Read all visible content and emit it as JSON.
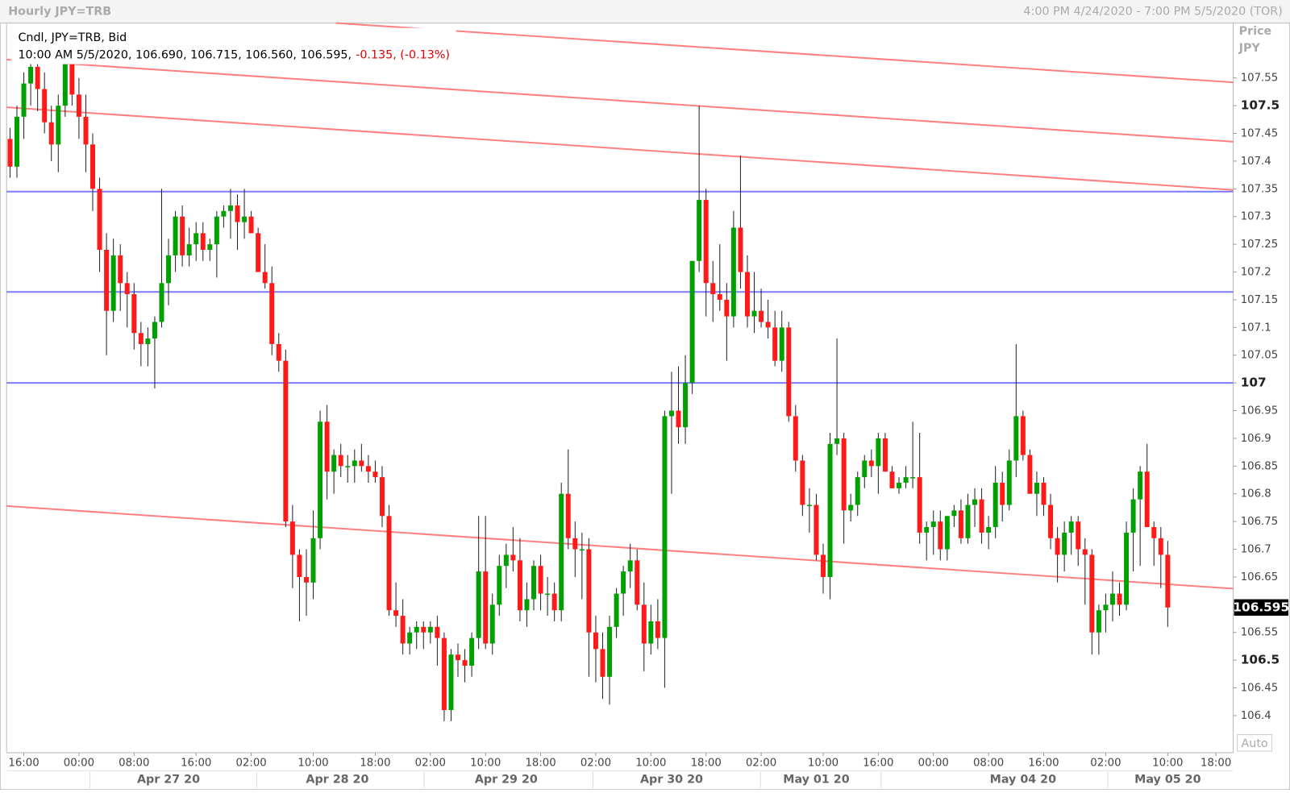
{
  "chart_data": {
    "type": "candlestick",
    "title": "Hourly JPY=TRB",
    "range_label": "4:00 PM 4/24/2020 - 7:00 PM 5/5/2020 (TOR)",
    "legend": {
      "line1": "Cndl, JPY=TRB, Bid",
      "line2": "10:00 AM 5/5/2020, 106.690, 106.715, 106.560, 106.595,",
      "change": "-0.135, (-0.13%)"
    },
    "axis_title": [
      "Price",
      "JPY"
    ],
    "auto_label": "Auto",
    "up_color": "#00a000",
    "down_color": "#ff1a1a",
    "hline_color": "#7b7bff",
    "trend_color": "#ff8080",
    "xlim": [
      -0.5,
      177.5
    ],
    "ylim": [
      106.333,
      107.649
    ],
    "yticks": [
      106.4,
      106.45,
      106.5,
      106.55,
      106.6,
      106.65,
      106.7,
      106.75,
      106.8,
      106.85,
      106.9,
      106.95,
      107,
      107.05,
      107.1,
      107.15,
      107.2,
      107.25,
      107.3,
      107.35,
      107.4,
      107.45,
      107.5,
      107.55
    ],
    "xticks": [
      {
        "value": 2,
        "label": "16:00"
      },
      {
        "value": 10,
        "label": "00:00"
      },
      {
        "value": 18,
        "label": "08:00"
      },
      {
        "value": 27,
        "label": "16:00"
      },
      {
        "value": 35,
        "label": "02:00"
      },
      {
        "value": 44,
        "label": "10:00"
      },
      {
        "value": 53,
        "label": "18:00"
      },
      {
        "value": 61,
        "label": "02:00"
      },
      {
        "value": 69,
        "label": "10:00"
      },
      {
        "value": 77,
        "label": "18:00"
      },
      {
        "value": 85,
        "label": "02:00"
      },
      {
        "value": 93,
        "label": "10:00"
      },
      {
        "value": 101,
        "label": "18:00"
      },
      {
        "value": 109,
        "label": "02:00"
      },
      {
        "value": 118,
        "label": "10:00"
      },
      {
        "value": 126,
        "label": "16:00"
      },
      {
        "value": 134,
        "label": "00:00"
      },
      {
        "value": 142,
        "label": "08:00"
      },
      {
        "value": 150,
        "label": "16:00"
      },
      {
        "value": 159,
        "label": "02:00"
      },
      {
        "value": 168,
        "label": "10:00"
      },
      {
        "value": 175,
        "label": "18:00"
      }
    ],
    "date_ticks": [
      {
        "value": 23,
        "label": "Apr 27 20"
      },
      {
        "value": 47.5,
        "label": "Apr 28 20"
      },
      {
        "value": 72,
        "label": "Apr 29 20"
      },
      {
        "value": 96,
        "label": "Apr 30 20"
      },
      {
        "value": 117,
        "label": "May 01 20"
      },
      {
        "value": 147,
        "label": "May 04 20"
      },
      {
        "value": 168,
        "label": "May 05 20"
      }
    ],
    "date_separators": [
      11.6,
      35.8,
      60.1,
      84.6,
      108.9,
      126.4,
      159.3
    ],
    "hlines": [
      107.345,
      107.164,
      107.0
    ],
    "trendlines": [
      {
        "x": [
          47.3,
          177.5
        ],
        "y": [
          107.649,
          107.542
        ]
      },
      {
        "x": [
          -0.5,
          177.5
        ],
        "y": [
          107.583,
          107.435
        ]
      },
      {
        "x": [
          -0.5,
          177.5
        ],
        "y": [
          107.497,
          107.348
        ]
      },
      {
        "x": [
          -0.5,
          177.5
        ],
        "y": [
          106.778,
          106.629
        ]
      }
    ],
    "last_price": {
      "value": 106.595,
      "label": "106.595"
    },
    "ohlc": [
      [
        107.44,
        107.46,
        107.37,
        107.39
      ],
      [
        107.39,
        107.5,
        107.37,
        107.48
      ],
      [
        107.48,
        107.56,
        107.44,
        107.54
      ],
      [
        107.54,
        107.6,
        107.5,
        107.57
      ],
      [
        107.57,
        107.59,
        107.49,
        107.53
      ],
      [
        107.53,
        107.56,
        107.45,
        107.47
      ],
      [
        107.47,
        107.5,
        107.4,
        107.43
      ],
      [
        107.43,
        107.52,
        107.38,
        107.5
      ],
      [
        107.5,
        107.6,
        107.48,
        107.58
      ],
      [
        107.58,
        107.6,
        107.5,
        107.52
      ],
      [
        107.52,
        107.55,
        107.44,
        107.48
      ],
      [
        107.48,
        107.52,
        107.38,
        107.43
      ],
      [
        107.43,
        107.45,
        107.31,
        107.35
      ],
      [
        107.35,
        107.37,
        107.2,
        107.24
      ],
      [
        107.24,
        107.27,
        107.05,
        107.13
      ],
      [
        107.13,
        107.26,
        107.11,
        107.23
      ],
      [
        107.23,
        107.25,
        107.13,
        107.18
      ],
      [
        107.18,
        107.2,
        107.1,
        107.16
      ],
      [
        107.16,
        107.18,
        107.06,
        107.09
      ],
      [
        107.09,
        107.11,
        107.03,
        107.07
      ],
      [
        107.07,
        107.1,
        107.03,
        107.08
      ],
      [
        107.08,
        107.12,
        106.99,
        107.11
      ],
      [
        107.11,
        107.35,
        107.1,
        107.18
      ],
      [
        107.18,
        107.26,
        107.14,
        107.23
      ],
      [
        107.23,
        107.31,
        107.2,
        107.3
      ],
      [
        107.3,
        107.32,
        107.21,
        107.23
      ],
      [
        107.23,
        107.28,
        107.21,
        107.25
      ],
      [
        107.25,
        107.29,
        107.22,
        107.27
      ],
      [
        107.27,
        107.29,
        107.22,
        107.24
      ],
      [
        107.24,
        107.26,
        107.22,
        107.25
      ],
      [
        107.25,
        107.31,
        107.19,
        107.3
      ],
      [
        107.3,
        107.32,
        107.28,
        107.31
      ],
      [
        107.31,
        107.35,
        107.26,
        107.32
      ],
      [
        107.32,
        107.34,
        107.24,
        107.29
      ],
      [
        107.29,
        107.35,
        107.26,
        107.3
      ],
      [
        107.3,
        107.31,
        107.27,
        107.27
      ],
      [
        107.27,
        107.28,
        107.2,
        107.2
      ],
      [
        107.2,
        107.25,
        107.17,
        107.18
      ],
      [
        107.18,
        107.21,
        107.05,
        107.07
      ],
      [
        107.07,
        107.09,
        107.02,
        107.04
      ],
      [
        107.04,
        107.06,
        106.74,
        106.75
      ],
      [
        106.75,
        106.78,
        106.63,
        106.69
      ],
      [
        106.69,
        106.7,
        106.57,
        106.65
      ],
      [
        106.65,
        106.7,
        106.58,
        106.64
      ],
      [
        106.64,
        106.77,
        106.61,
        106.72
      ],
      [
        106.72,
        106.95,
        106.7,
        106.93
      ],
      [
        106.93,
        106.96,
        106.79,
        106.84
      ],
      [
        106.84,
        106.88,
        106.8,
        106.87
      ],
      [
        106.87,
        106.89,
        106.83,
        106.85
      ],
      [
        106.85,
        106.87,
        106.82,
        106.85
      ],
      [
        106.85,
        106.88,
        106.82,
        106.86
      ],
      [
        106.86,
        106.89,
        106.84,
        106.85
      ],
      [
        106.85,
        106.87,
        106.82,
        106.84
      ],
      [
        106.84,
        106.86,
        106.82,
        106.83
      ],
      [
        106.83,
        106.85,
        106.74,
        106.76
      ],
      [
        106.76,
        106.78,
        106.58,
        106.59
      ],
      [
        106.59,
        106.64,
        106.56,
        106.58
      ],
      [
        106.58,
        106.61,
        106.51,
        106.53
      ],
      [
        106.53,
        106.56,
        106.51,
        106.55
      ],
      [
        106.55,
        106.57,
        106.52,
        106.56
      ],
      [
        106.56,
        106.57,
        106.52,
        106.55
      ],
      [
        106.55,
        106.57,
        106.53,
        106.56
      ],
      [
        106.56,
        106.58,
        106.49,
        106.54
      ],
      [
        106.54,
        106.55,
        106.39,
        106.41
      ],
      [
        106.41,
        106.52,
        106.39,
        106.51
      ],
      [
        106.51,
        106.53,
        106.47,
        106.5
      ],
      [
        106.5,
        106.52,
        106.46,
        106.49
      ],
      [
        106.49,
        106.55,
        106.47,
        106.54
      ],
      [
        106.54,
        106.76,
        106.52,
        106.66
      ],
      [
        106.66,
        106.76,
        106.52,
        106.53
      ],
      [
        106.53,
        106.62,
        106.51,
        106.6
      ],
      [
        106.6,
        106.69,
        106.58,
        106.67
      ],
      [
        106.67,
        106.71,
        106.63,
        106.69
      ],
      [
        106.69,
        106.74,
        106.66,
        106.68
      ],
      [
        106.68,
        106.72,
        106.57,
        106.59
      ],
      [
        106.59,
        106.64,
        106.56,
        106.61
      ],
      [
        106.61,
        106.68,
        106.59,
        106.67
      ],
      [
        106.67,
        106.69,
        106.59,
        106.62
      ],
      [
        106.62,
        106.65,
        106.58,
        106.62
      ],
      [
        106.62,
        106.64,
        106.57,
        106.59
      ],
      [
        106.59,
        106.82,
        106.57,
        106.8
      ],
      [
        106.8,
        106.88,
        106.7,
        106.72
      ],
      [
        106.72,
        106.75,
        106.65,
        106.7
      ],
      [
        106.7,
        106.73,
        106.61,
        106.7
      ],
      [
        106.7,
        106.72,
        106.47,
        106.55
      ],
      [
        106.55,
        106.58,
        106.46,
        106.52
      ],
      [
        106.52,
        106.55,
        106.43,
        106.47
      ],
      [
        106.47,
        106.58,
        106.42,
        106.56
      ],
      [
        106.56,
        106.63,
        106.54,
        106.62
      ],
      [
        106.62,
        106.67,
        106.58,
        106.66
      ],
      [
        106.66,
        106.71,
        106.63,
        106.68
      ],
      [
        106.68,
        106.7,
        106.59,
        106.6
      ],
      [
        106.6,
        106.64,
        106.48,
        106.53
      ],
      [
        106.53,
        106.6,
        106.51,
        106.57
      ],
      [
        106.57,
        106.61,
        106.52,
        106.54
      ],
      [
        106.54,
        106.95,
        106.45,
        106.94
      ],
      [
        106.94,
        107.02,
        106.8,
        106.95
      ],
      [
        106.95,
        107.03,
        106.89,
        106.92
      ],
      [
        106.92,
        107.05,
        106.89,
        107.0
      ],
      [
        107.0,
        107.22,
        106.98,
        107.22
      ],
      [
        107.22,
        107.5,
        107.2,
        107.33
      ],
      [
        107.33,
        107.35,
        107.12,
        107.18
      ],
      [
        107.18,
        107.22,
        107.11,
        107.16
      ],
      [
        107.16,
        107.25,
        107.13,
        107.15
      ],
      [
        107.15,
        107.18,
        107.04,
        107.12
      ],
      [
        107.12,
        107.31,
        107.1,
        107.28
      ],
      [
        107.28,
        107.41,
        107.17,
        107.2
      ],
      [
        107.2,
        107.23,
        107.1,
        107.12
      ],
      [
        107.12,
        107.2,
        107.09,
        107.13
      ],
      [
        107.13,
        107.17,
        107.1,
        107.11
      ],
      [
        107.11,
        107.15,
        107.08,
        107.1
      ],
      [
        107.1,
        107.13,
        107.03,
        107.04
      ],
      [
        107.04,
        107.13,
        107.02,
        107.1
      ],
      [
        107.1,
        107.11,
        106.93,
        106.94
      ],
      [
        106.94,
        106.96,
        106.84,
        106.86
      ],
      [
        106.86,
        106.87,
        106.76,
        106.78
      ],
      [
        106.78,
        106.81,
        106.73,
        106.78
      ],
      [
        106.78,
        106.8,
        106.68,
        106.69
      ],
      [
        106.69,
        106.71,
        106.62,
        106.65
      ],
      [
        106.65,
        106.91,
        106.61,
        106.89
      ],
      [
        106.89,
        107.08,
        106.87,
        106.9
      ],
      [
        106.9,
        106.91,
        106.71,
        106.77
      ],
      [
        106.77,
        106.8,
        106.75,
        106.78
      ],
      [
        106.78,
        106.84,
        106.76,
        106.83
      ],
      [
        106.83,
        106.87,
        106.81,
        106.86
      ],
      [
        106.86,
        106.88,
        106.83,
        106.85
      ],
      [
        106.85,
        106.91,
        106.8,
        106.9
      ],
      [
        106.9,
        106.91,
        106.84,
        106.84
      ],
      [
        106.84,
        106.85,
        106.81,
        106.81
      ],
      [
        106.81,
        106.83,
        106.8,
        106.82
      ],
      [
        106.82,
        106.85,
        106.81,
        106.83
      ],
      [
        106.83,
        106.93,
        106.81,
        106.83
      ],
      [
        106.83,
        106.91,
        106.71,
        106.73
      ],
      [
        106.73,
        106.75,
        106.68,
        106.74
      ],
      [
        106.74,
        106.77,
        106.69,
        106.75
      ],
      [
        106.75,
        106.77,
        106.68,
        106.7
      ],
      [
        106.7,
        106.76,
        106.68,
        106.76
      ],
      [
        106.76,
        106.78,
        106.74,
        106.77
      ],
      [
        106.77,
        106.79,
        106.71,
        106.72
      ],
      [
        106.72,
        106.8,
        106.71,
        106.78
      ],
      [
        106.78,
        106.81,
        106.74,
        106.79
      ],
      [
        106.79,
        106.81,
        106.71,
        106.73
      ],
      [
        106.73,
        106.76,
        106.7,
        106.74
      ],
      [
        106.74,
        106.85,
        106.72,
        106.82
      ],
      [
        106.82,
        106.84,
        106.75,
        106.78
      ],
      [
        106.78,
        106.88,
        106.77,
        106.86
      ],
      [
        106.86,
        107.07,
        106.83,
        106.94
      ],
      [
        106.94,
        106.95,
        106.86,
        106.87
      ],
      [
        106.87,
        106.88,
        106.8,
        106.8
      ],
      [
        106.8,
        106.84,
        106.76,
        106.82
      ],
      [
        106.82,
        106.83,
        106.76,
        106.78
      ],
      [
        106.78,
        106.8,
        106.7,
        106.72
      ],
      [
        106.72,
        106.74,
        106.64,
        106.69
      ],
      [
        106.69,
        106.75,
        106.66,
        106.73
      ],
      [
        106.73,
        106.76,
        106.69,
        106.75
      ],
      [
        106.75,
        106.76,
        106.67,
        106.7
      ],
      [
        106.7,
        106.72,
        106.6,
        106.69
      ],
      [
        106.69,
        106.7,
        106.51,
        106.55
      ],
      [
        106.55,
        106.6,
        106.51,
        106.59
      ],
      [
        106.59,
        106.62,
        106.55,
        106.6
      ],
      [
        106.6,
        106.66,
        106.57,
        106.62
      ],
      [
        106.62,
        106.64,
        106.58,
        106.6
      ],
      [
        106.6,
        106.75,
        106.59,
        106.73
      ],
      [
        106.73,
        106.81,
        106.66,
        106.79
      ],
      [
        106.79,
        106.85,
        106.67,
        106.84
      ],
      [
        106.84,
        106.89,
        106.74,
        106.74
      ],
      [
        106.74,
        106.75,
        106.67,
        106.72
      ],
      [
        106.72,
        106.74,
        106.63,
        106.69
      ],
      [
        106.69,
        106.715,
        106.56,
        106.595
      ]
    ]
  }
}
